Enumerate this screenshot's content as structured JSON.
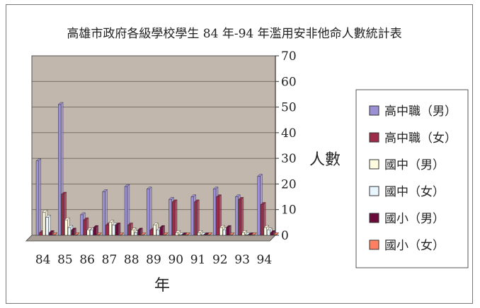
{
  "chart_data": {
    "type": "bar",
    "title": "高雄市政府各級學校學生 84 年-94 年濫用安非他命人數統計表",
    "xlabel": "年",
    "ylabel": "人數",
    "ylim": [
      0,
      70
    ],
    "y_ticks": [
      "0",
      "10",
      "20",
      "30",
      "40",
      "50",
      "60",
      "70"
    ],
    "categories": [
      "84",
      "85",
      "86",
      "87",
      "88",
      "89",
      "90",
      "91",
      "92",
      "93",
      "94"
    ],
    "grid": true,
    "legend_position": "right",
    "series": [
      {
        "name": "高中職（男）",
        "color": "#9b8fd6",
        "values": [
          29,
          51,
          8,
          17,
          19,
          18,
          14,
          15,
          18,
          15,
          23
        ]
      },
      {
        "name": "高中職（女）",
        "color": "#9e2a4a",
        "values": [
          1,
          16,
          6,
          4,
          4,
          2,
          13,
          13,
          15,
          14,
          12
        ]
      },
      {
        "name": "國中（男）",
        "color": "#fffbe0",
        "values": [
          9,
          6,
          2,
          5,
          2,
          4,
          1,
          1,
          3,
          1,
          3
        ]
      },
      {
        "name": "國中（女）",
        "color": "#e8f6ff",
        "values": [
          7,
          3,
          2,
          4,
          1,
          2,
          0,
          0,
          2,
          0,
          2
        ]
      },
      {
        "name": "國小（男）",
        "color": "#6a0a3a",
        "values": [
          1,
          2,
          3,
          4,
          2,
          3,
          0,
          0,
          3,
          0,
          1
        ]
      },
      {
        "name": "國小（女）",
        "color": "#ff8060",
        "values": [
          0,
          0,
          0,
          0,
          0,
          0,
          0,
          0,
          0,
          0,
          0
        ]
      }
    ]
  }
}
